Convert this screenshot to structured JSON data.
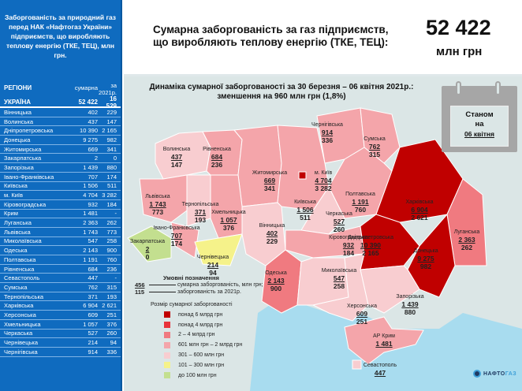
{
  "sidebar": {
    "title": "Заборгованість за природний газ перед НАК «Нафтогаз України» підприємств, що виробляють теплову енергію (ТКЕ, ТЕЦ), млн грн.",
    "col_region": "РЕГІОНИ",
    "col_total": "сумарна",
    "col_2021": "за 2021р.",
    "total": {
      "name": "УКРАЇНА",
      "total": "52 422",
      "y2021": "16 529"
    },
    "rows": [
      {
        "name": "Вінницька",
        "total": "402",
        "y2021": "229"
      },
      {
        "name": "Волинська",
        "total": "437",
        "y2021": "147"
      },
      {
        "name": "Дніпропетровська",
        "total": "10 390",
        "y2021": "2 165"
      },
      {
        "name": "Донецька",
        "total": "9 275",
        "y2021": "982"
      },
      {
        "name": "Житомирська",
        "total": "669",
        "y2021": "341"
      },
      {
        "name": "Закарпатська",
        "total": "2",
        "y2021": "0"
      },
      {
        "name": "Запорізька",
        "total": "1 439",
        "y2021": "880"
      },
      {
        "name": "Івано-Франківська",
        "total": "707",
        "y2021": "174"
      },
      {
        "name": "Київська",
        "total": "1 506",
        "y2021": "511"
      },
      {
        "name": "м. Київ",
        "total": "4 704",
        "y2021": "3 282"
      },
      {
        "name": "Кіровоградська",
        "total": "932",
        "y2021": "184"
      },
      {
        "name": "Крим",
        "total": "1 481",
        "y2021": "-"
      },
      {
        "name": "Луганська",
        "total": "2 363",
        "y2021": "262"
      },
      {
        "name": "Львівська",
        "total": "1 743",
        "y2021": "773"
      },
      {
        "name": "Миколаївська",
        "total": "547",
        "y2021": "258"
      },
      {
        "name": "Одеська",
        "total": "2 143",
        "y2021": "900"
      },
      {
        "name": "Полтавська",
        "total": "1 191",
        "y2021": "760"
      },
      {
        "name": "Рівненська",
        "total": "684",
        "y2021": "236"
      },
      {
        "name": "Севастополь",
        "total": "447",
        "y2021": "-"
      },
      {
        "name": "Сумська",
        "total": "762",
        "y2021": "315"
      },
      {
        "name": "Тернопільська",
        "total": "371",
        "y2021": "193"
      },
      {
        "name": "Харківська",
        "total": "6 904",
        "y2021": "2 621"
      },
      {
        "name": "Херсонська",
        "total": "609",
        "y2021": "251"
      },
      {
        "name": "Хмельницька",
        "total": "1 057",
        "y2021": "376"
      },
      {
        "name": "Черкаська",
        "total": "527",
        "y2021": "260"
      },
      {
        "name": "Чернівецька",
        "total": "214",
        "y2021": "94"
      },
      {
        "name": "Чернігівська",
        "total": "914",
        "y2021": "336"
      }
    ]
  },
  "header": {
    "line1": "Сумарна заборгованість за газ підприємств,",
    "line2": "що виробляють теплову енергію (ТКЕ, ТЕЦ):",
    "total": "52 422",
    "unit": "млн грн"
  },
  "map": {
    "title_line1": "Динаміка сумарної заборгованості за 30 березня – 06 квітня 2021р.:",
    "title_line2": "зменшення на 960 млн грн (1,8%)",
    "calendar": {
      "line1": "Станом",
      "line2": "на",
      "date": "06 квітня"
    },
    "regions": {
      "volyn": {
        "name": "Волинська",
        "total": "437",
        "y2021": "147"
      },
      "rivne": {
        "name": "Рівненська",
        "total": "684",
        "y2021": "236"
      },
      "zhytomyr": {
        "name": "Житомирська",
        "total": "669",
        "y2021": "341"
      },
      "kyiv_city": {
        "name": "м. Київ",
        "total": "4 704",
        "y2021": "3 282"
      },
      "kyiv": {
        "name": "Київська",
        "total": "1 506",
        "y2021": "511"
      },
      "chernihiv": {
        "name": "Чернігівська",
        "total": "914",
        "y2021": "336"
      },
      "sumy": {
        "name": "Сумська",
        "total": "762",
        "y2021": "315"
      },
      "lviv": {
        "name": "Львівська",
        "total": "1 743",
        "y2021": "773"
      },
      "ternopil": {
        "name": "Тернопільська",
        "total": "371",
        "y2021": "193"
      },
      "khmelnytskyi": {
        "name": "Хмельницька",
        "total": "1 057",
        "y2021": "376"
      },
      "poltava": {
        "name": "Полтавська",
        "total": "1 191",
        "y2021": "760"
      },
      "cherkasy": {
        "name": "Черкаська",
        "total": "527",
        "y2021": "260"
      },
      "kharkiv": {
        "name": "Харківська",
        "total": "6 904",
        "y2021": "2 621"
      },
      "luhansk": {
        "name": "Луганська",
        "total": "2 363",
        "y2021": "262"
      },
      "ivano": {
        "name": "Івано-Франківська",
        "total": "707",
        "y2021": "174"
      },
      "zakarpattia": {
        "name": "Закарпатська",
        "total": "2",
        "y2021": "0"
      },
      "chernivtsi": {
        "name": "Чернівецька",
        "total": "214",
        "y2021": "94"
      },
      "vinnytsia": {
        "name": "Вінницька",
        "total": "402",
        "y2021": "229"
      },
      "kirovohrad": {
        "name": "Кіровоградська",
        "total": "932",
        "y2021": "184"
      },
      "dnipro": {
        "name": "Дніпропетровська",
        "total": "10 390",
        "y2021": "2 165"
      },
      "donetsk": {
        "name": "Донецька",
        "total": "9 275",
        "y2021": "982"
      },
      "odesa": {
        "name": "Одеська",
        "total": "2 143",
        "y2021": "900"
      },
      "mykolaiv": {
        "name": "Миколаївська",
        "total": "547",
        "y2021": "258"
      },
      "zaporizhzhia": {
        "name": "Запорізька",
        "total": "1 439",
        "y2021": "880"
      },
      "kherson": {
        "name": "Херсонська",
        "total": "609",
        "y2021": "251"
      },
      "crimea": {
        "name": "АР Крим",
        "total": "1 481"
      },
      "sevastopol": {
        "name": "Севастополь",
        "total": "447"
      }
    },
    "legend": {
      "title": "Умовні позначення",
      "ex_total": "456",
      "ex_total_label": "сумарна заборгованість, млн грн;",
      "ex_2021": "115",
      "ex_2021_label": "заборгованість за 2021р.",
      "scale_title": "Розмір сумарної заборгованості",
      "scale": [
        {
          "label": "понад 6 млрд грн",
          "color": "#c00000"
        },
        {
          "label": "понад 4 млрд грн",
          "color": "#e8333a"
        },
        {
          "label": "2 – 4 млрд грн",
          "color": "#f07a80"
        },
        {
          "label": "601 млн грн – 2 млрд грн",
          "color": "#f4a5aa"
        },
        {
          "label": "301 – 600 млн грн",
          "color": "#f8cdd0"
        },
        {
          "label": "101 – 300 млн грн",
          "color": "#f5f28a"
        },
        {
          "label": "до 100 млн грн",
          "color": "#c3df8f"
        }
      ]
    },
    "logo": {
      "name1": "НАФТО",
      "name2": "ГАЗ"
    }
  }
}
